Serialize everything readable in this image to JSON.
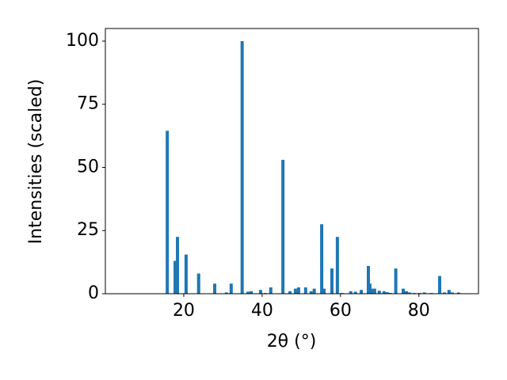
{
  "chart_data": {
    "type": "bar",
    "x_label": "2θ (°)",
    "y_label": "Intensities (scaled)",
    "x": [
      15.8,
      17.8,
      18.4,
      20.6,
      23.8,
      27.9,
      30.9,
      32.1,
      34.9,
      36.4,
      37.2,
      39.6,
      40.8,
      42.2,
      45.3,
      47.1,
      48.5,
      49.3,
      51.1,
      52.5,
      53.3,
      55.2,
      55.8,
      57.8,
      59.2,
      60.4,
      62.6,
      63.8,
      65.3,
      67.1,
      67.5,
      68.1,
      68.7,
      69.9,
      71.1,
      71.9,
      72.7,
      74.1,
      76.0,
      76.8,
      77.6,
      78.8,
      80.2,
      81.4,
      83.2,
      85.3,
      86.5,
      87.7,
      88.5,
      90.1
    ],
    "values": [
      64.5,
      13,
      22.5,
      15.5,
      8,
      4,
      0.5,
      4,
      100,
      0.8,
      1,
      1.5,
      0.3,
      2.5,
      53,
      1,
      2,
      2.5,
      2.5,
      1,
      2,
      27.5,
      2,
      10,
      22.5,
      0.3,
      1,
      0.8,
      1.5,
      11,
      4,
      2,
      2,
      1.2,
      1,
      0.6,
      0.3,
      10,
      2,
      1,
      0.5,
      0.3,
      0.3,
      0.5,
      0.3,
      7,
      0.5,
      1.5,
      0.5,
      0.5
    ],
    "color": "#1f77b4",
    "xlim": [
      0,
      95.2
    ],
    "xticks": [
      20,
      40,
      60,
      80
    ],
    "ylim": [
      0,
      105
    ],
    "yticks": [
      0,
      25,
      50,
      75,
      100
    ],
    "grid": false
  }
}
